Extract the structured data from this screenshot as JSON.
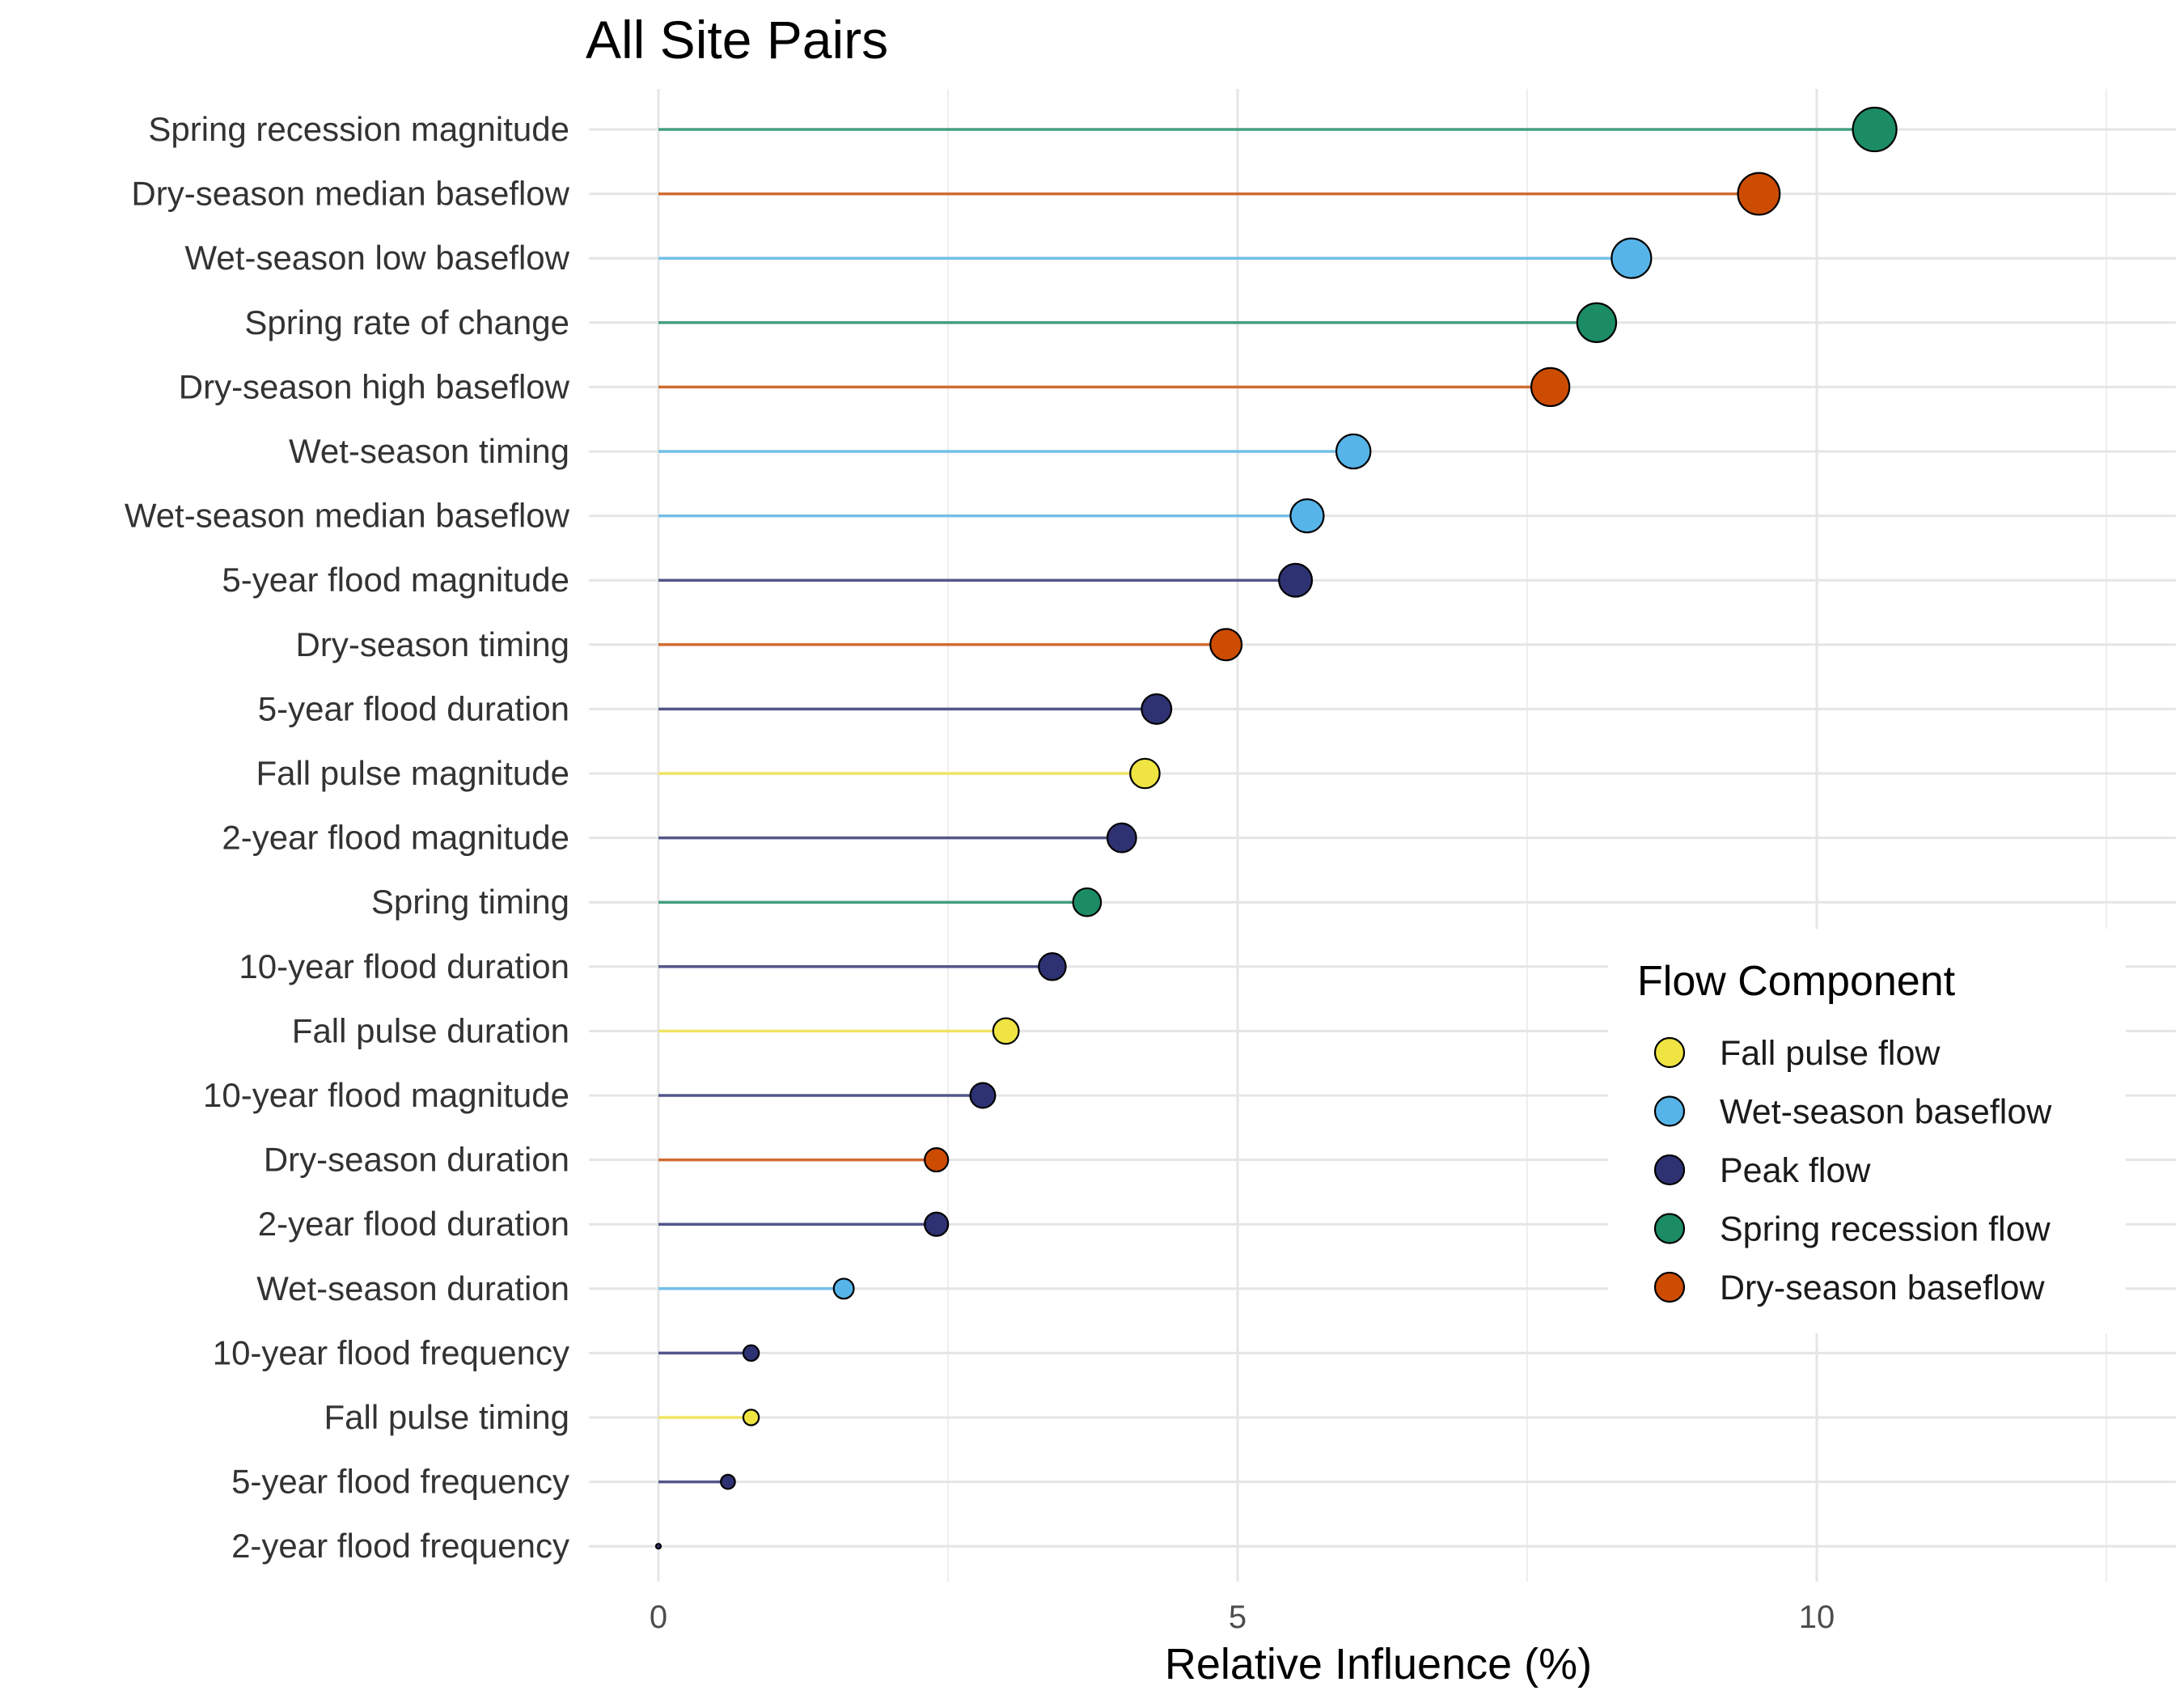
{
  "chart_data": {
    "type": "lollipop",
    "title": "All Site Pairs",
    "xlabel": "Relative Influence (%)",
    "ylabel": "",
    "xlim": [
      0,
      26
    ],
    "xticks": [
      0,
      5,
      10,
      15,
      20,
      25
    ],
    "grid": true,
    "legend": {
      "title": "Flow Component",
      "position": "right",
      "items": [
        {
          "name": "Fall pulse flow",
          "color": "#F0E442"
        },
        {
          "name": "Wet-season baseflow",
          "color": "#56B4E9"
        },
        {
          "name": "Peak flow",
          "color": "#2E3272"
        },
        {
          "name": "Spring recession flow",
          "color": "#1B8C64"
        },
        {
          "name": "Dry-season baseflow",
          "color": "#CC4C02"
        }
      ]
    },
    "points": [
      {
        "label": "Spring recession magnitude",
        "value": 10.5,
        "component": "Spring recession flow"
      },
      {
        "label": "Dry-season median baseflow",
        "value": 9.5,
        "component": "Dry-season baseflow"
      },
      {
        "label": "Wet-season low baseflow",
        "value": 8.4,
        "component": "Wet-season baseflow"
      },
      {
        "label": "Spring rate of change",
        "value": 8.1,
        "component": "Spring recession flow"
      },
      {
        "label": "Dry-season high baseflow",
        "value": 7.7,
        "component": "Dry-season baseflow"
      },
      {
        "label": "Wet-season timing",
        "value": 6.0,
        "component": "Wet-season baseflow"
      },
      {
        "label": "Wet-season median baseflow",
        "value": 5.6,
        "component": "Wet-season baseflow"
      },
      {
        "label": "5-year flood magnitude",
        "value": 5.5,
        "component": "Peak flow"
      },
      {
        "label": "Dry-season timing",
        "value": 4.9,
        "component": "Dry-season baseflow"
      },
      {
        "label": "5-year flood duration",
        "value": 4.3,
        "component": "Peak flow"
      },
      {
        "label": "Fall pulse magnitude",
        "value": 4.2,
        "component": "Fall pulse flow"
      },
      {
        "label": "2-year flood magnitude",
        "value": 4.0,
        "component": "Peak flow"
      },
      {
        "label": "Spring timing",
        "value": 3.7,
        "component": "Spring recession flow"
      },
      {
        "label": "10-year flood duration",
        "value": 3.4,
        "component": "Peak flow"
      },
      {
        "label": "Fall pulse duration",
        "value": 3.0,
        "component": "Fall pulse flow"
      },
      {
        "label": "10-year flood magnitude",
        "value": 2.8,
        "component": "Peak flow"
      },
      {
        "label": "Dry-season duration",
        "value": 2.4,
        "component": "Dry-season baseflow"
      },
      {
        "label": "2-year flood duration",
        "value": 2.4,
        "component": "Peak flow"
      },
      {
        "label": "Wet-season duration",
        "value": 1.6,
        "component": "Wet-season baseflow"
      },
      {
        "label": "10-year flood frequency",
        "value": 0.8,
        "component": "Peak flow"
      },
      {
        "label": "Fall pulse timing",
        "value": 0.8,
        "component": "Fall pulse flow"
      },
      {
        "label": "5-year flood frequency",
        "value": 0.6,
        "component": "Peak flow"
      },
      {
        "label": "2-year flood frequency",
        "value": 0.0,
        "component": "Peak flow"
      }
    ]
  }
}
